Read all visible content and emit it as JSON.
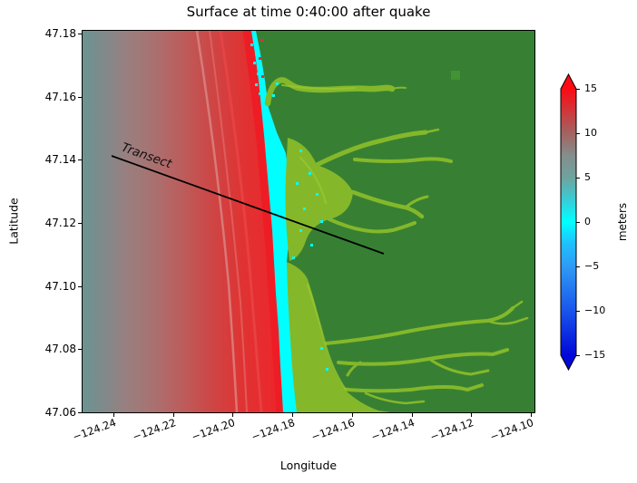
{
  "title": "Surface at time 0:40:00 after quake",
  "map": {
    "transect_label": "Transect"
  },
  "xaxis": {
    "label": "Longitude",
    "ticks": [
      {
        "value": -124.24,
        "label": "−124.24"
      },
      {
        "value": -124.22,
        "label": "−124.22"
      },
      {
        "value": -124.2,
        "label": "−124.20"
      },
      {
        "value": -124.18,
        "label": "−124.18"
      },
      {
        "value": -124.16,
        "label": "−124.16"
      },
      {
        "value": -124.14,
        "label": "−124.14"
      },
      {
        "value": -124.12,
        "label": "−124.12"
      },
      {
        "value": -124.1,
        "label": "−124.10"
      }
    ]
  },
  "yaxis": {
    "label": "Latitude",
    "ticks": [
      {
        "value": 47.18,
        "label": "47.18"
      },
      {
        "value": 47.16,
        "label": "47.16"
      },
      {
        "value": 47.14,
        "label": "47.14"
      },
      {
        "value": 47.12,
        "label": "47.12"
      },
      {
        "value": 47.1,
        "label": "47.10"
      },
      {
        "value": 47.08,
        "label": "47.08"
      },
      {
        "value": 47.06,
        "label": "47.06"
      }
    ]
  },
  "colorbar": {
    "label": "meters",
    "vmin": -15,
    "vmax": 15,
    "extend": "both",
    "ticks": [
      {
        "value": 15,
        "label": "15"
      },
      {
        "value": 10,
        "label": "10"
      },
      {
        "value": 5,
        "label": "5"
      },
      {
        "value": 0,
        "label": "0"
      },
      {
        "value": -5,
        "label": "−5"
      },
      {
        "value": -10,
        "label": "−10"
      },
      {
        "value": -15,
        "label": "−15"
      }
    ]
  },
  "palette": {
    "ocean_far": "#6B9492",
    "ocean_mauve": "#997F80",
    "wave_red": "#E62A2C",
    "coast_red": "#EE1C25",
    "shore_cyan": "#00FFFF",
    "land_green": "#378033",
    "channel_olive": "#84B82A",
    "channel_bright": "#9AC52F",
    "cb_deep_blue": "#0008D8"
  },
  "chart_data": {
    "type": "heatmap",
    "title": "Surface at time 0:40:00 after quake",
    "xlabel": "Longitude",
    "ylabel": "Latitude",
    "xlim": [
      -124.2505,
      -124.0975
    ],
    "ylim": [
      47.0605,
      47.1809
    ],
    "xticks": [
      -124.24,
      -124.22,
      -124.2,
      -124.18,
      -124.16,
      -124.14,
      -124.12,
      -124.1
    ],
    "yticks": [
      47.18,
      47.16,
      47.14,
      47.12,
      47.1,
      47.08,
      47.06
    ],
    "colorbar": {
      "label": "meters",
      "vmin": -15,
      "vmax": 15,
      "ticks": [
        15,
        10,
        5,
        0,
        -5,
        -10,
        -15
      ],
      "extend": "both",
      "stops": [
        {
          "v": 15,
          "c": "#FD0A14"
        },
        {
          "v": 10,
          "c": "#A26361"
        },
        {
          "v": 7.5,
          "c": "#848E8C"
        },
        {
          "v": 5,
          "c": "#6FA39E"
        },
        {
          "v": 0,
          "c": "#00FFFF"
        },
        {
          "v": -5,
          "c": "#2E9BF5"
        },
        {
          "v": -10,
          "c": "#1A55EC"
        },
        {
          "v": -15,
          "c": "#0008D8"
        }
      ]
    },
    "overlays": [
      {
        "name": "transect",
        "type": "line",
        "label": "Transect",
        "coords": [
          [
            -124.241,
            47.141
          ],
          [
            -124.148,
            47.11
          ]
        ],
        "color": "#000000"
      }
    ],
    "regions": [
      {
        "name": "offshore-ocean",
        "approx_value_m": "3–8 (gray-teal grading to red toward shore)",
        "lon_range": [
          -124.25,
          -124.2
        ]
      },
      {
        "name": "tsunami-wave-crest",
        "approx_value_m": "≥15 (bright red band just offshore)",
        "lon_range": [
          -124.205,
          -124.185
        ]
      },
      {
        "name": "shoreline-strip",
        "approx_value_m": "≈0 (cyan band along coast near lon −124.185)"
      },
      {
        "name": "dry-land",
        "color": "#378033",
        "lon_range": [
          -124.185,
          -124.1
        ]
      },
      {
        "name": "inundation-channels",
        "color": "#84B82A",
        "note": "olive river/estuary fingers at lat ≈47.165, 47.12–47.14 and 47.06–47.10"
      }
    ]
  }
}
